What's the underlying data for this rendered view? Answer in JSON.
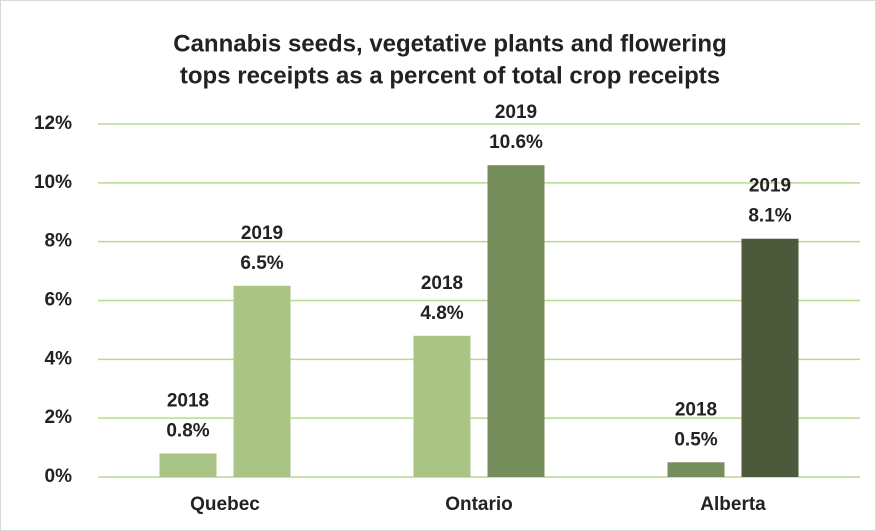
{
  "chart_data": {
    "type": "bar",
    "title": [
      "Cannabis seeds, vegetative plants and flowering",
      "tops receipts as a percent of total crop receipts"
    ],
    "categories": [
      "Quebec",
      "Ontario",
      "Alberta"
    ],
    "series": [
      {
        "name": "2018",
        "colors": [
          "#a9c484",
          "#a9c484",
          "#758c5b"
        ],
        "values": [
          0.8,
          4.8,
          0.5
        ],
        "value_labels": [
          "0.8%",
          "4.8%",
          "0.5%"
        ]
      },
      {
        "name": "2019",
        "colors": [
          "#a9c484",
          "#758c5b",
          "#4c5a3b"
        ],
        "values": [
          6.5,
          10.6,
          8.1
        ],
        "value_labels": [
          "6.5%",
          "10.6%",
          "8.1%"
        ]
      }
    ],
    "ylim": [
      0,
      12
    ],
    "yticks": [
      {
        "value": 0,
        "label": "0%"
      },
      {
        "value": 2,
        "label": "2%"
      },
      {
        "value": 4,
        "label": "4%"
      },
      {
        "value": 6,
        "label": "6%"
      },
      {
        "value": 8,
        "label": "8%"
      },
      {
        "value": 10,
        "label": "10%"
      },
      {
        "value": 12,
        "label": "12%"
      }
    ],
    "grid": true
  }
}
